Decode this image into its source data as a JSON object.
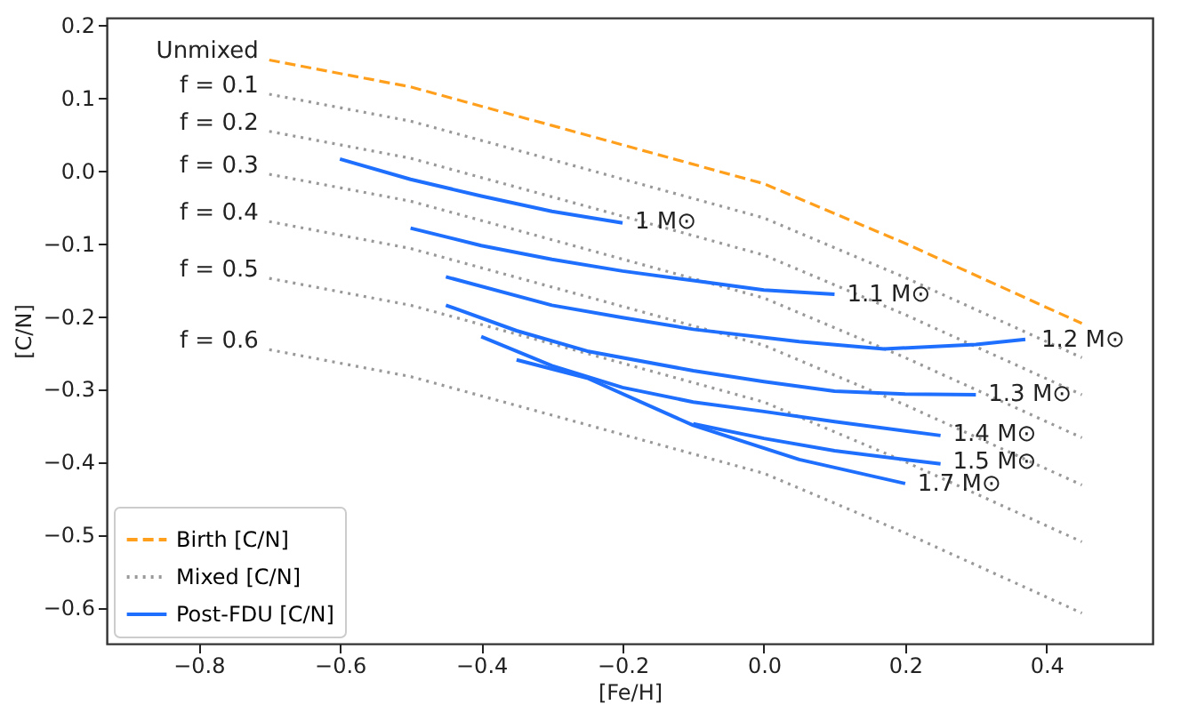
{
  "chart_data": {
    "type": "line",
    "xlabel": "[Fe/H]",
    "ylabel": "[C/N]",
    "xlim": [
      -0.93,
      0.55
    ],
    "ylim": [
      -0.65,
      0.21
    ],
    "xticks": [
      {
        "value": -0.8,
        "label": "−0.8"
      },
      {
        "value": -0.6,
        "label": "−0.6"
      },
      {
        "value": -0.4,
        "label": "−0.4"
      },
      {
        "value": -0.2,
        "label": "−0.2"
      },
      {
        "value": 0,
        "label": "0.0"
      },
      0.2,
      0.4
    ],
    "yticks": [
      {
        "value": -0.6,
        "label": "−0.6"
      },
      {
        "value": -0.5,
        "label": "−0.5"
      },
      {
        "value": -0.4,
        "label": "−0.4"
      },
      {
        "value": -0.3,
        "label": "−0.3"
      },
      {
        "value": -0.2,
        "label": "−0.2"
      },
      {
        "value": -0.1,
        "label": "−0.1"
      },
      {
        "value": 0,
        "label": "0.0"
      },
      0.1,
      0.2
    ],
    "grid": false,
    "legend": "bottom left",
    "marker": "none",
    "series": [
      {
        "name": "Birth [C/N]",
        "color": "#ff9f1c",
        "line_style": "dashed",
        "x": [
          -0.7,
          -0.5,
          -0.3,
          0,
          0.2,
          0.45
        ],
        "values": [
          0.152,
          0.115,
          0.062,
          -0.018,
          -0.1,
          -0.21
        ]
      },
      {
        "name": "Mixed [C/N]",
        "color": "#999999",
        "line_style": "dotted",
        "x": [
          -0.7,
          -0.5,
          -0.3,
          0,
          0.2,
          0.45
        ],
        "values": [
          0.105,
          0.068,
          0.015,
          -0.065,
          -0.147,
          -0.257
        ]
      },
      {
        "color": "#999999",
        "line_style": "dotted",
        "x": [
          -0.7,
          -0.5,
          -0.3,
          0,
          0.2,
          0.45
        ],
        "values": [
          0.054,
          0.017,
          -0.036,
          -0.116,
          -0.198,
          -0.308
        ]
      },
      {
        "color": "#999999",
        "line_style": "dotted",
        "x": [
          -0.7,
          -0.5,
          -0.3,
          0,
          0.2,
          0.45
        ],
        "values": [
          -0.005,
          -0.042,
          -0.095,
          -0.175,
          -0.257,
          -0.367
        ]
      },
      {
        "color": "#999999",
        "line_style": "dotted",
        "x": [
          -0.7,
          -0.5,
          -0.3,
          0,
          0.2,
          0.45
        ],
        "values": [
          -0.07,
          -0.107,
          -0.16,
          -0.24,
          -0.322,
          -0.432
        ]
      },
      {
        "color": "#999999",
        "line_style": "dotted",
        "x": [
          -0.7,
          -0.5,
          -0.3,
          0,
          0.2,
          0.45
        ],
        "values": [
          -0.148,
          -0.185,
          -0.238,
          -0.318,
          -0.4,
          -0.51
        ]
      },
      {
        "color": "#999999",
        "line_style": "dotted",
        "x": [
          -0.7,
          -0.5,
          -0.3,
          0,
          0.2,
          0.45
        ],
        "values": [
          -0.246,
          -0.283,
          -0.336,
          -0.416,
          -0.498,
          -0.608
        ]
      },
      {
        "name": "Post-FDU [C/N]",
        "color": "#1f6fff",
        "line_style": "solid",
        "x": [
          -0.6,
          -0.5,
          -0.4,
          -0.3,
          -0.2
        ],
        "values": [
          0.016,
          -0.012,
          -0.035,
          -0.056,
          -0.072
        ]
      },
      {
        "color": "#1f6fff",
        "line_style": "solid",
        "x": [
          -0.5,
          -0.4,
          -0.3,
          -0.2,
          -0.1,
          0,
          0.1
        ],
        "values": [
          -0.079,
          -0.103,
          -0.122,
          -0.138,
          -0.151,
          -0.164,
          -0.17
        ]
      },
      {
        "color": "#1f6fff",
        "line_style": "solid",
        "x": [
          -0.45,
          -0.3,
          -0.2,
          -0.1,
          0.05,
          0.17,
          0.3,
          0.37
        ],
        "values": [
          -0.146,
          -0.185,
          -0.202,
          -0.218,
          -0.235,
          -0.245,
          -0.239,
          -0.232
        ]
      },
      {
        "color": "#1f6fff",
        "line_style": "solid",
        "x": [
          -0.45,
          -0.35,
          -0.25,
          -0.1,
          0,
          0.1,
          0.2,
          0.3
        ],
        "values": [
          -0.185,
          -0.22,
          -0.248,
          -0.275,
          -0.29,
          -0.303,
          -0.307,
          -0.308
        ]
      },
      {
        "color": "#1f6fff",
        "line_style": "solid",
        "x": [
          -0.4,
          -0.3,
          -0.2,
          -0.1,
          0,
          0.1,
          0.25
        ],
        "values": [
          -0.228,
          -0.268,
          -0.298,
          -0.318,
          -0.331,
          -0.345,
          -0.364
        ]
      },
      {
        "color": "#1f6fff",
        "line_style": "solid",
        "x": [
          -0.1,
          0,
          0.1,
          0.25
        ],
        "values": [
          -0.348,
          -0.368,
          -0.385,
          -0.403
        ]
      },
      {
        "color": "#1f6fff",
        "line_style": "solid",
        "x": [
          -0.35,
          -0.25,
          -0.1,
          0.05,
          0.2
        ],
        "values": [
          -0.26,
          -0.285,
          -0.35,
          -0.397,
          -0.43
        ]
      }
    ],
    "annotations": [
      {
        "text": "Unmixed",
        "x": -0.7,
        "y": 0.152
      },
      {
        "text": "f = 0.1",
        "x": -0.7,
        "y": 0.105
      },
      {
        "text": "f = 0.2",
        "x": -0.7,
        "y": 0.054
      },
      {
        "text": "f = 0.3",
        "x": -0.7,
        "y": -0.005
      },
      {
        "text": "f = 0.4",
        "x": -0.7,
        "y": -0.07
      },
      {
        "text": "f = 0.5",
        "x": -0.7,
        "y": -0.148
      },
      {
        "text": "f = 0.6",
        "x": -0.7,
        "y": -0.246
      },
      {
        "text": "1 M⊙",
        "x": -0.19,
        "y": -0.07
      },
      {
        "text": "1.1 M⊙",
        "x": 0.11,
        "y": -0.17
      },
      {
        "text": "1.2 M⊙",
        "x": 0.385,
        "y": -0.232
      },
      {
        "text": "1.3 M⊙",
        "x": 0.31,
        "y": -0.307
      },
      {
        "text": "1.4 M⊙",
        "x": 0.26,
        "y": -0.362
      },
      {
        "text": "1.5 M⊙",
        "x": 0.26,
        "y": -0.4
      },
      {
        "text": "1.7 M⊙",
        "x": 0.21,
        "y": -0.43
      }
    ]
  }
}
